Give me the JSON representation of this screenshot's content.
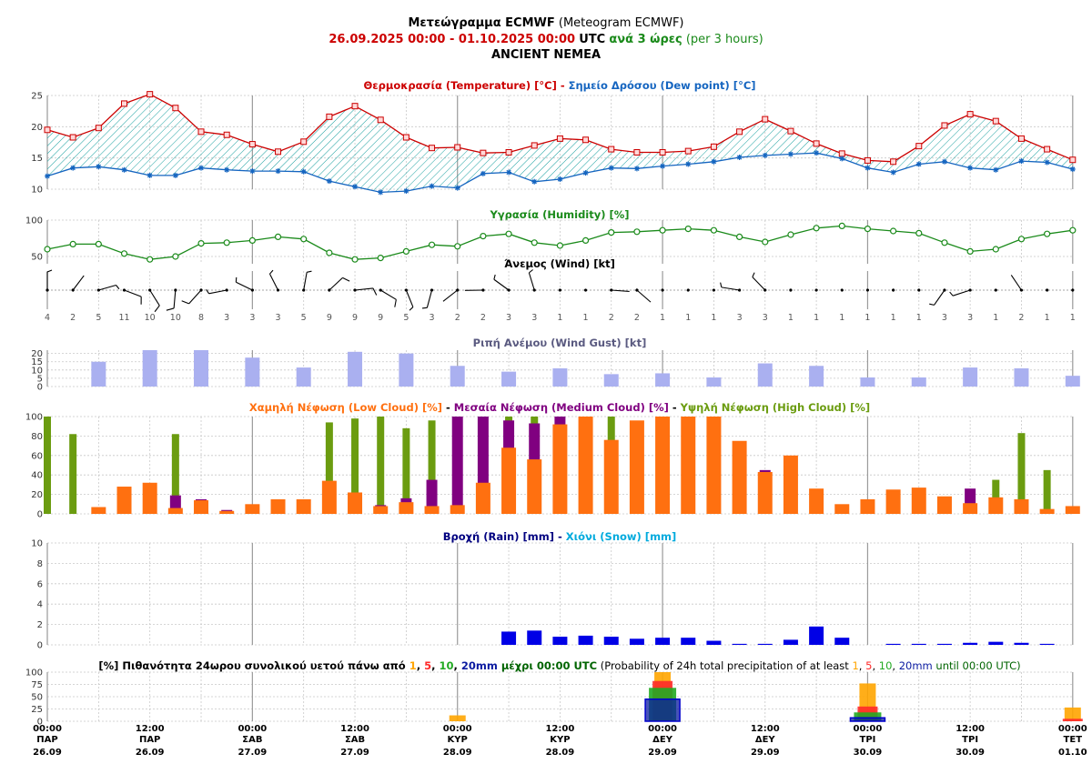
{
  "header": {
    "line1_bold": "Μετεώγραμμα ECMWF",
    "line1_rest": "(Meteogram ECMWF)",
    "start": "26.09.2025 00:00",
    "dash": " - ",
    "end": "01.10.2025 00:00",
    "utc": "UTC",
    "step_bold": "ανά 3 ώρες",
    "step_rest": "(per 3 hours)",
    "location": "ANCIENT NEMEA"
  },
  "colors": {
    "temp": "#cc0000",
    "dew": "#1565c0",
    "humidity": "#1a8a1a",
    "gust": "#aab0f0",
    "low": "#ff7010",
    "medium": "#800080",
    "high": "#6b9c10",
    "rain": "#0000e6",
    "snow": "#00aadd",
    "p1": "#ffa500",
    "p5": "#ff2a2a",
    "p10": "#22aa22",
    "p20": "#0a1aa0"
  },
  "chart_data": [
    {
      "type": "line",
      "title_parts": [
        {
          "text": "Θερμοκρασία (Temperature) [°C]",
          "color": "#cc0000"
        },
        {
          "text": " - ",
          "color": "#cc0000"
        },
        {
          "text": "Σημείο Δρόσου (Dew point) [°C]",
          "color": "#1565c0"
        }
      ],
      "ylim": [
        10,
        25
      ],
      "yticks": [
        "10",
        "15",
        "20",
        "25"
      ],
      "series": [
        {
          "name": "Θερμοκρασία (Temperature) [°C]",
          "values": [
            19.5,
            18.3,
            19.8,
            23.7,
            25.2,
            23.0,
            19.2,
            18.7,
            17.2,
            16.0,
            17.6,
            21.6,
            23.3,
            21.1,
            18.3,
            16.6,
            16.7,
            15.8,
            15.9,
            17.0,
            18.1,
            17.9,
            16.4,
            15.9,
            15.9,
            16.1,
            16.8,
            19.2,
            21.2,
            19.3,
            17.3,
            15.7,
            14.6,
            14.4,
            16.9,
            20.2,
            22.0,
            20.9,
            18.1,
            16.4,
            14.7
          ]
        },
        {
          "name": "Σημείο Δρόσου (Dew point) [°C]",
          "values": [
            12.1,
            13.4,
            13.6,
            13.1,
            12.2,
            12.2,
            13.4,
            13.1,
            12.9,
            12.9,
            12.8,
            11.3,
            10.4,
            9.5,
            9.7,
            10.5,
            10.2,
            12.5,
            12.7,
            11.2,
            11.6,
            12.6,
            13.4,
            13.3,
            13.7,
            14.0,
            14.4,
            15.1,
            15.4,
            15.6,
            15.8,
            14.9,
            13.4,
            12.7,
            14.0,
            14.4,
            13.4,
            13.1,
            14.5,
            14.3,
            13.2
          ]
        }
      ]
    },
    {
      "type": "line",
      "title_parts": [
        {
          "text": "Υγρασία (Humidity) [%]",
          "color": "#1a8a1a"
        }
      ],
      "ylim": [
        40,
        100
      ],
      "yticks": [
        "50",
        "100"
      ],
      "series": [
        {
          "name": "Υγρασία (Humidity) [%]",
          "values": [
            60,
            67,
            67,
            54,
            46,
            50,
            68,
            69,
            72,
            77,
            74,
            55,
            46,
            48,
            57,
            66,
            64,
            78,
            81,
            69,
            65,
            72,
            83,
            84,
            86,
            88,
            86,
            77,
            70,
            80,
            89,
            92,
            88,
            85,
            82,
            69,
            57,
            60,
            74,
            81,
            86
          ]
        }
      ]
    },
    {
      "type": "table",
      "title_parts": [
        {
          "text": "Άνεμος (Wind) [kt]",
          "color": "#000000"
        }
      ],
      "wind_speed_kt": [
        "4",
        "2",
        "5",
        "11",
        "10",
        "10",
        "8",
        "3",
        "3",
        "3",
        "5",
        "9",
        "9",
        "9",
        "5",
        "3",
        "2",
        "2",
        "3",
        "3",
        "1",
        "1",
        "2",
        "2",
        "1",
        "1",
        "1",
        "3",
        "3",
        "1",
        "1",
        "1",
        "1",
        "1",
        "1",
        "3",
        "3",
        "1",
        "2",
        "1",
        "1"
      ]
    },
    {
      "type": "bar",
      "title_parts": [
        {
          "text": "Ριπή Ανέμου (Wind Gust) [kt]",
          "color": "#5a5a80"
        }
      ],
      "ylim": [
        0,
        22
      ],
      "yticks": [
        "0",
        "5",
        "10",
        "15",
        "20"
      ],
      "series": [
        {
          "name": "Ριπή Ανέμου (Wind Gust) [kt]",
          "values": [
            15,
            22,
            22,
            17.5,
            11.5,
            21,
            20,
            12.5,
            9,
            11,
            7.5,
            8,
            5.5,
            14,
            12.5,
            5.5,
            5.5,
            11.5,
            11,
            6.5
          ]
        }
      ]
    },
    {
      "type": "bar",
      "title_parts": [
        {
          "text": "Χαμηλή Νέφωση (Low Cloud) [%]",
          "color": "#ff7010"
        },
        {
          "text": " - ",
          "color": "#000000"
        },
        {
          "text": "Μεσαία Νέφωση (Medium Cloud) [%]",
          "color": "#800080"
        },
        {
          "text": " - ",
          "color": "#000000"
        },
        {
          "text": "Υψηλή Νέφωση (High Cloud) [%]",
          "color": "#6b9c10"
        }
      ],
      "ylim": [
        0,
        100
      ],
      "yticks": [
        "0",
        "20",
        "40",
        "60",
        "80",
        "100"
      ],
      "series": [
        {
          "name": "Χαμηλή Νέφωση (Low Cloud) [%]",
          "values": [
            0,
            0,
            7,
            28,
            32,
            6,
            14,
            3,
            10,
            15,
            15,
            34,
            22,
            8,
            12,
            8,
            9,
            32,
            68,
            56,
            92,
            100,
            76,
            96,
            100,
            100,
            100,
            75,
            43,
            60,
            26,
            10,
            15,
            25,
            27,
            18,
            11,
            17,
            15,
            5,
            8
          ]
        },
        {
          "name": "Μεσαία Νέφωση (Medium Cloud) [%]",
          "values": [
            0,
            0,
            0,
            0,
            0,
            19,
            15,
            4,
            0,
            0,
            0,
            0,
            0,
            9,
            16,
            35,
            100,
            100,
            96,
            93,
            100,
            100,
            0,
            0,
            0,
            0,
            0,
            0,
            45,
            0,
            0,
            0,
            0,
            0,
            0,
            0,
            26,
            0,
            0,
            0,
            0
          ]
        },
        {
          "name": "Υψηλή Νέφωση (High Cloud) [%]",
          "values": [
            100,
            82,
            0,
            0,
            0,
            82,
            0,
            0,
            0,
            0,
            0,
            94,
            98,
            100,
            88,
            96,
            100,
            100,
            100,
            100,
            100,
            100,
            100,
            0,
            0,
            0,
            0,
            0,
            0,
            0,
            0,
            0,
            0,
            0,
            0,
            0,
            0,
            35,
            83,
            45,
            0
          ]
        }
      ]
    },
    {
      "type": "bar",
      "title_parts": [
        {
          "text": "Βροχή (Rain) [mm]",
          "color": "#000080"
        },
        {
          "text": " - ",
          "color": "#000080"
        },
        {
          "text": "Χιόνι (Snow) [mm]",
          "color": "#00aadd"
        }
      ],
      "ylim": [
        0,
        10
      ],
      "yticks": [
        "0",
        "2",
        "4",
        "6",
        "8",
        "10"
      ],
      "series": [
        {
          "name": "Βροχή (Rain) [mm]",
          "values": [
            0,
            0,
            0,
            0,
            0,
            0,
            0,
            0,
            0,
            0,
            0,
            0,
            0,
            0,
            0,
            0,
            0,
            0,
            1.3,
            1.4,
            0.8,
            0.9,
            0.8,
            0.6,
            0.7,
            0.7,
            0.4,
            0.1,
            0.1,
            0.5,
            1.8,
            0.7,
            0,
            0.1,
            0.1,
            0.1,
            0.2,
            0.3,
            0.2,
            0.1,
            0
          ]
        },
        {
          "name": "Χιόνι (Snow) [mm]",
          "values": [
            0,
            0,
            0,
            0,
            0,
            0,
            0,
            0,
            0,
            0,
            0,
            0,
            0,
            0,
            0,
            0,
            0,
            0,
            0,
            0,
            0,
            0,
            0,
            0,
            0,
            0,
            0,
            0,
            0,
            0,
            0,
            0,
            0,
            0,
            0,
            0,
            0,
            0,
            0,
            0,
            0
          ]
        }
      ]
    },
    {
      "type": "bar",
      "title_parts": [
        {
          "text": "[%] Πιθανότητα 24ωρου συνολικού υετού πάνω από ",
          "color": "#000000",
          "bold": true
        },
        {
          "text": "1",
          "color": "#ffa500",
          "bold": true
        },
        {
          "text": ", ",
          "color": "#000000",
          "bold": true
        },
        {
          "text": "5",
          "color": "#ff2a2a",
          "bold": true
        },
        {
          "text": ", ",
          "color": "#000000",
          "bold": true
        },
        {
          "text": "10",
          "color": "#22aa22",
          "bold": true
        },
        {
          "text": ", ",
          "color": "#000000",
          "bold": true
        },
        {
          "text": "20mm",
          "color": "#0a1aa0",
          "bold": true
        },
        {
          "text": " μέχρι 00:00 UTC",
          "color": "#006400",
          "bold": true
        },
        {
          "text": " (Probability of 24h total precipitation of at least ",
          "color": "#000000",
          "bold": false
        },
        {
          "text": "1",
          "color": "#ffa500",
          "bold": false
        },
        {
          "text": ", ",
          "color": "#000000",
          "bold": false
        },
        {
          "text": "5",
          "color": "#ff2a2a",
          "bold": false
        },
        {
          "text": ", ",
          "color": "#000000",
          "bold": false
        },
        {
          "text": "10",
          "color": "#22aa22",
          "bold": false
        },
        {
          "text": ", ",
          "color": "#000000",
          "bold": false
        },
        {
          "text": "20mm",
          "color": "#0a1aa0",
          "bold": false
        },
        {
          "text": " until 00:00 UTC)",
          "color": "#006400",
          "bold": false
        }
      ],
      "ylim": [
        0,
        100
      ],
      "yticks": [
        "0",
        "25",
        "50",
        "75",
        "100"
      ],
      "categories": [
        "27.09",
        "28.09",
        "29.09",
        "30.09",
        "01.10"
      ],
      "series": [
        {
          "name": "1",
          "values": [
            0,
            12,
            100,
            77,
            28
          ]
        },
        {
          "name": "5",
          "values": [
            0,
            0,
            82,
            30,
            5
          ]
        },
        {
          "name": "10",
          "values": [
            0,
            0,
            68,
            18,
            0
          ]
        },
        {
          "name": "20mm",
          "values": [
            0,
            0,
            45,
            7,
            0
          ]
        }
      ]
    }
  ],
  "time_axis": [
    {
      "time": "00:00",
      "day": "ΠΑΡ",
      "date": "26.09"
    },
    {
      "time": "12:00",
      "day": "ΠΑΡ",
      "date": "26.09"
    },
    {
      "time": "00:00",
      "day": "ΣΑΒ",
      "date": "27.09"
    },
    {
      "time": "12:00",
      "day": "ΣΑΒ",
      "date": "27.09"
    },
    {
      "time": "00:00",
      "day": "ΚΥΡ",
      "date": "28.09"
    },
    {
      "time": "12:00",
      "day": "ΚΥΡ",
      "date": "28.09"
    },
    {
      "time": "00:00",
      "day": "ΔΕΥ",
      "date": "29.09"
    },
    {
      "time": "12:00",
      "day": "ΔΕΥ",
      "date": "29.09"
    },
    {
      "time": "00:00",
      "day": "ΤΡΙ",
      "date": "30.09"
    },
    {
      "time": "12:00",
      "day": "ΤΡΙ",
      "date": "30.09"
    },
    {
      "time": "00:00",
      "day": "ΤΕΤ",
      "date": "01.10"
    }
  ]
}
